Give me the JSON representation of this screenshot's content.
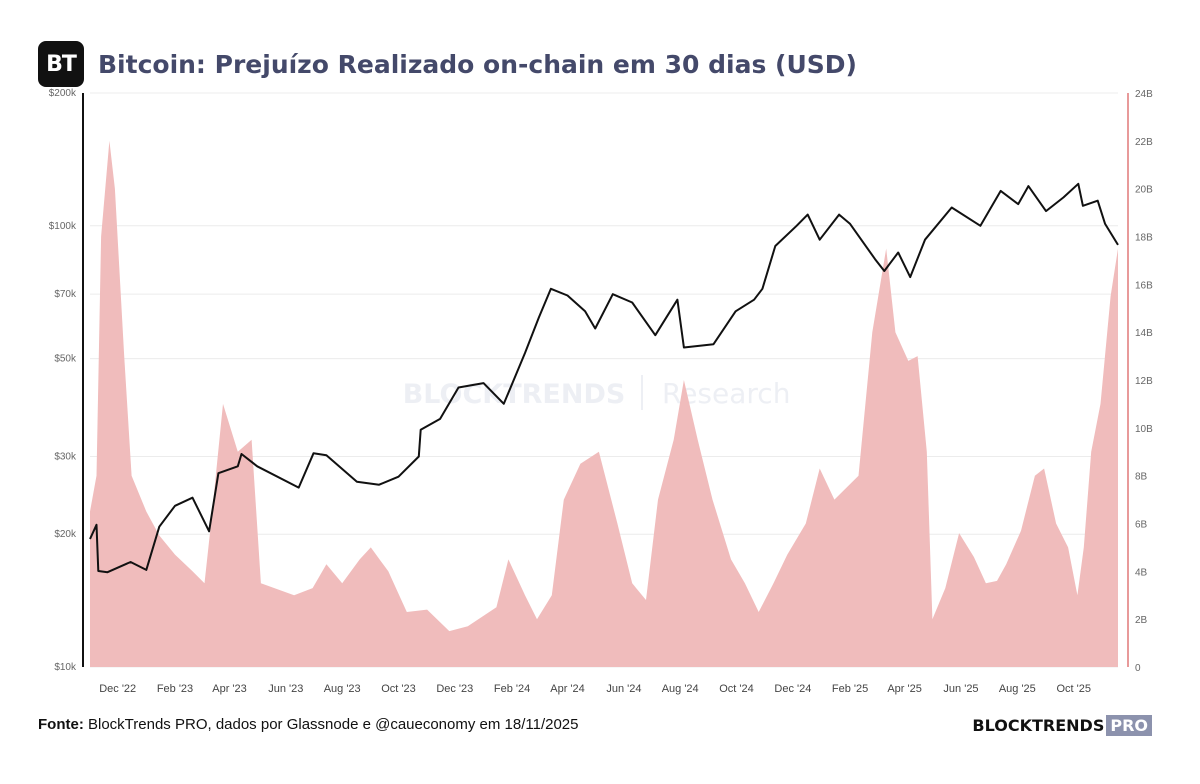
{
  "header": {
    "logo_text": "BT",
    "title": "Bitcoin: Prejuízo Realizado on-chain em 30 dias (USD)"
  },
  "footer": {
    "source_label": "Fonte:",
    "source_text": "BlockTrends PRO, dados por Glassnode e @caueconomy em 18/11/2025",
    "brand_main": "BLOCKTRENDS",
    "brand_pro": "PRO"
  },
  "watermark": {
    "main": "BLOCKTRENDS",
    "sub": "Research"
  },
  "colors": {
    "price_line": "#111111",
    "loss_area": "#f0bcbc",
    "right_axis": "#e07878",
    "left_axis": "#111111",
    "grid": "#ececec"
  },
  "chart_data": {
    "type": "line+area",
    "x_ticks": [
      "Dec '22",
      "Feb '23",
      "Apr '23",
      "Jun '23",
      "Aug '23",
      "Oct '23",
      "Dec '23",
      "Feb '24",
      "Apr '24",
      "Jun '24",
      "Aug '24",
      "Oct '24",
      "Dec '24",
      "Feb '25",
      "Apr '25",
      "Jun '25",
      "Aug '25",
      "Oct '25"
    ],
    "x_range": [
      "2022-11-01",
      "2025-11-18"
    ],
    "y_left": {
      "scale": "log",
      "range": [
        10000,
        200000
      ],
      "ticks": [
        10000,
        20000,
        30000,
        50000,
        70000,
        100000,
        200000
      ],
      "tick_labels": [
        "$10k",
        "$20k",
        "$30k",
        "$50k",
        "$70k",
        "$100k",
        "$200k"
      ]
    },
    "y_right": {
      "scale": "linear",
      "range": [
        0,
        24000000000
      ],
      "tick_labels": [
        "0",
        "2B",
        "4B",
        "6B",
        "8B",
        "10B",
        "12B",
        "14B",
        "16B",
        "18B",
        "20B",
        "22B",
        "24B"
      ]
    },
    "series": [
      {
        "axis": "left",
        "type": "line",
        "points": [
          [
            "2022-11-01",
            19500
          ],
          [
            "2022-11-08",
            21000
          ],
          [
            "2022-11-10",
            16500
          ],
          [
            "2022-11-20",
            16400
          ],
          [
            "2022-12-15",
            17300
          ],
          [
            "2023-01-01",
            16600
          ],
          [
            "2023-01-15",
            20800
          ],
          [
            "2023-02-01",
            23200
          ],
          [
            "2023-02-20",
            24200
          ],
          [
            "2023-03-10",
            20300
          ],
          [
            "2023-03-20",
            27500
          ],
          [
            "2023-04-10",
            28500
          ],
          [
            "2023-04-14",
            30400
          ],
          [
            "2023-05-01",
            28500
          ],
          [
            "2023-06-15",
            25500
          ],
          [
            "2023-07-01",
            30500
          ],
          [
            "2023-07-15",
            30200
          ],
          [
            "2023-08-17",
            26300
          ],
          [
            "2023-09-10",
            25900
          ],
          [
            "2023-10-01",
            27000
          ],
          [
            "2023-10-23",
            30000
          ],
          [
            "2023-10-25",
            34500
          ],
          [
            "2023-11-15",
            36500
          ],
          [
            "2023-12-05",
            43000
          ],
          [
            "2024-01-01",
            44000
          ],
          [
            "2024-01-23",
            39500
          ],
          [
            "2024-02-15",
            51500
          ],
          [
            "2024-03-01",
            62000
          ],
          [
            "2024-03-14",
            72000
          ],
          [
            "2024-04-01",
            69500
          ],
          [
            "2024-04-20",
            64000
          ],
          [
            "2024-05-01",
            58500
          ],
          [
            "2024-05-20",
            70000
          ],
          [
            "2024-06-10",
            67000
          ],
          [
            "2024-07-05",
            56500
          ],
          [
            "2024-07-29",
            68000
          ],
          [
            "2024-08-05",
            53000
          ],
          [
            "2024-09-06",
            53900
          ],
          [
            "2024-09-30",
            64000
          ],
          [
            "2024-10-20",
            68000
          ],
          [
            "2024-10-29",
            72000
          ],
          [
            "2024-11-12",
            90000
          ],
          [
            "2024-12-05",
            100000
          ],
          [
            "2024-12-17",
            106000
          ],
          [
            "2024-12-30",
            93000
          ],
          [
            "2025-01-20",
            106000
          ],
          [
            "2025-02-01",
            101000
          ],
          [
            "2025-02-28",
            84000
          ],
          [
            "2025-03-10",
            79000
          ],
          [
            "2025-03-25",
            87000
          ],
          [
            "2025-04-07",
            76500
          ],
          [
            "2025-04-23",
            93000
          ],
          [
            "2025-05-22",
            110000
          ],
          [
            "2025-06-22",
            100000
          ],
          [
            "2025-07-14",
            120000
          ],
          [
            "2025-08-02",
            112000
          ],
          [
            "2025-08-13",
            123000
          ],
          [
            "2025-09-01",
            108000
          ],
          [
            "2025-09-20",
            116000
          ],
          [
            "2025-10-06",
            124500
          ],
          [
            "2025-10-11",
            111000
          ],
          [
            "2025-10-27",
            114000
          ],
          [
            "2025-11-04",
            101000
          ],
          [
            "2025-11-18",
            90500
          ]
        ]
      },
      {
        "axis": "right",
        "type": "area",
        "unit": "USD",
        "points": [
          [
            "2022-11-01",
            6500000000
          ],
          [
            "2022-11-08",
            8000000000
          ],
          [
            "2022-11-13",
            18000000000
          ],
          [
            "2022-11-22",
            22000000000
          ],
          [
            "2022-11-28",
            20000000000
          ],
          [
            "2022-12-08",
            13000000000
          ],
          [
            "2022-12-16",
            8000000000
          ],
          [
            "2023-01-01",
            6500000000
          ],
          [
            "2023-01-15",
            5500000000
          ],
          [
            "2023-02-01",
            4700000000
          ],
          [
            "2023-02-20",
            4000000000
          ],
          [
            "2023-03-05",
            3500000000
          ],
          [
            "2023-03-12",
            6000000000
          ],
          [
            "2023-03-25",
            11000000000
          ],
          [
            "2023-04-10",
            9000000000
          ],
          [
            "2023-04-25",
            9500000000
          ],
          [
            "2023-05-05",
            3500000000
          ],
          [
            "2023-06-10",
            3000000000
          ],
          [
            "2023-06-30",
            3300000000
          ],
          [
            "2023-07-15",
            4300000000
          ],
          [
            "2023-08-01",
            3500000000
          ],
          [
            "2023-08-20",
            4500000000
          ],
          [
            "2023-09-01",
            5000000000
          ],
          [
            "2023-09-20",
            4000000000
          ],
          [
            "2023-10-10",
            2300000000
          ],
          [
            "2023-11-01",
            2400000000
          ],
          [
            "2023-11-25",
            1500000000
          ],
          [
            "2023-12-15",
            1700000000
          ],
          [
            "2024-01-15",
            2500000000
          ],
          [
            "2024-01-28",
            4500000000
          ],
          [
            "2024-02-15",
            3000000000
          ],
          [
            "2024-02-28",
            2000000000
          ],
          [
            "2024-03-15",
            3000000000
          ],
          [
            "2024-03-28",
            7000000000
          ],
          [
            "2024-04-15",
            8500000000
          ],
          [
            "2024-05-05",
            9000000000
          ],
          [
            "2024-05-25",
            6000000000
          ],
          [
            "2024-06-10",
            3500000000
          ],
          [
            "2024-06-25",
            2800000000
          ],
          [
            "2024-07-08",
            7000000000
          ],
          [
            "2024-07-25",
            9500000000
          ],
          [
            "2024-08-05",
            12000000000
          ],
          [
            "2024-08-20",
            9500000000
          ],
          [
            "2024-09-05",
            7000000000
          ],
          [
            "2024-09-25",
            4500000000
          ],
          [
            "2024-10-10",
            3500000000
          ],
          [
            "2024-10-25",
            2300000000
          ],
          [
            "2024-11-10",
            3500000000
          ],
          [
            "2024-11-25",
            4700000000
          ],
          [
            "2024-12-15",
            6000000000
          ],
          [
            "2024-12-30",
            8300000000
          ],
          [
            "2025-01-15",
            7000000000
          ],
          [
            "2025-01-28",
            7500000000
          ],
          [
            "2025-02-10",
            8000000000
          ],
          [
            "2025-02-25",
            14000000000
          ],
          [
            "2025-03-12",
            17500000000
          ],
          [
            "2025-03-22",
            14000000000
          ],
          [
            "2025-04-05",
            12800000000
          ],
          [
            "2025-04-15",
            13000000000
          ],
          [
            "2025-04-25",
            9000000000
          ],
          [
            "2025-05-01",
            2000000000
          ],
          [
            "2025-05-15",
            3300000000
          ],
          [
            "2025-05-30",
            5600000000
          ],
          [
            "2025-06-15",
            4600000000
          ],
          [
            "2025-06-28",
            3500000000
          ],
          [
            "2025-07-10",
            3600000000
          ],
          [
            "2025-07-20",
            4300000000
          ],
          [
            "2025-08-05",
            5700000000
          ],
          [
            "2025-08-20",
            8000000000
          ],
          [
            "2025-08-30",
            8300000000
          ],
          [
            "2025-09-12",
            6000000000
          ],
          [
            "2025-09-25",
            5000000000
          ],
          [
            "2025-10-05",
            3000000000
          ],
          [
            "2025-10-12",
            5000000000
          ],
          [
            "2025-10-20",
            9000000000
          ],
          [
            "2025-10-30",
            11000000000
          ],
          [
            "2025-11-10",
            15500000000
          ],
          [
            "2025-11-18",
            17500000000
          ]
        ]
      }
    ]
  }
}
